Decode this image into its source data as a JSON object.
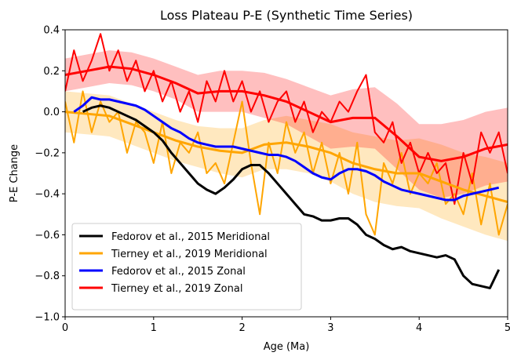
{
  "chart_data": {
    "type": "line",
    "title": "Loss Plateau P-E (Synthetic Time Series)",
    "xlabel": "Age (Ma)",
    "ylabel": "P-E Change",
    "x": [
      0,
      0.1,
      0.2,
      0.3,
      0.4,
      0.5,
      0.6,
      0.7,
      0.8,
      0.9,
      1.0,
      1.1,
      1.2,
      1.3,
      1.4,
      1.5,
      1.6,
      1.7,
      1.8,
      1.9,
      2.0,
      2.1,
      2.2,
      2.3,
      2.4,
      2.5,
      2.6,
      2.7,
      2.8,
      2.9,
      3.0,
      3.1,
      3.2,
      3.3,
      3.4,
      3.5,
      3.6,
      3.7,
      3.8,
      3.9,
      4.0,
      4.1,
      4.2,
      4.3,
      4.4,
      4.5,
      4.6,
      4.7,
      4.8,
      4.9,
      5.0
    ],
    "fit_x": [
      0,
      0.25,
      0.5,
      0.75,
      1,
      1.25,
      1.5,
      1.75,
      2,
      2.25,
      2.5,
      2.75,
      3,
      3.25,
      3.5,
      3.75,
      4,
      4.25,
      4.5,
      4.75,
      5
    ],
    "series": [
      {
        "name": "Fedorov et al., 2015 Meridional",
        "color": "#000000",
        "values": [
          null,
          null,
          0.0,
          0.02,
          0.03,
          0.02,
          0.0,
          -0.02,
          -0.04,
          -0.07,
          -0.1,
          -0.14,
          -0.2,
          -0.25,
          -0.3,
          -0.35,
          -0.38,
          -0.4,
          -0.37,
          -0.33,
          -0.28,
          -0.26,
          -0.26,
          -0.3,
          -0.35,
          -0.4,
          -0.45,
          -0.5,
          -0.51,
          -0.53,
          -0.53,
          -0.52,
          -0.52,
          -0.55,
          -0.6,
          -0.62,
          -0.65,
          -0.67,
          -0.66,
          -0.68,
          -0.69,
          -0.7,
          -0.71,
          -0.7,
          -0.72,
          -0.8,
          -0.84,
          -0.85,
          -0.86,
          -0.77,
          null
        ]
      },
      {
        "name": "Tierney et al., 2019 Meridional",
        "color": "#ffa500",
        "values": [
          0.05,
          -0.15,
          0.1,
          -0.1,
          0.05,
          -0.05,
          0.0,
          -0.2,
          -0.05,
          -0.1,
          -0.25,
          -0.05,
          -0.3,
          -0.15,
          -0.2,
          -0.1,
          -0.3,
          -0.25,
          -0.35,
          -0.15,
          0.05,
          -0.25,
          -0.5,
          -0.15,
          -0.3,
          -0.05,
          -0.2,
          -0.1,
          -0.3,
          -0.15,
          -0.35,
          -0.2,
          -0.4,
          -0.15,
          -0.5,
          -0.6,
          -0.25,
          -0.35,
          -0.2,
          -0.4,
          -0.3,
          -0.35,
          -0.25,
          -0.45,
          -0.4,
          -0.5,
          -0.3,
          -0.55,
          -0.35,
          -0.6,
          -0.45
        ],
        "fit": [
          0,
          -0.01,
          -0.02,
          -0.06,
          -0.1,
          -0.14,
          -0.17,
          -0.19,
          -0.2,
          -0.16,
          -0.15,
          -0.17,
          -0.2,
          -0.25,
          -0.28,
          -0.3,
          -0.3,
          -0.34,
          -0.38,
          -0.41,
          -0.44
        ],
        "lower": [
          -0.1,
          -0.11,
          -0.12,
          -0.16,
          -0.2,
          -0.24,
          -0.27,
          -0.3,
          -0.32,
          -0.28,
          -0.28,
          -0.3,
          -0.34,
          -0.4,
          -0.44,
          -0.46,
          -0.47,
          -0.52,
          -0.56,
          -0.6,
          -0.63
        ],
        "upper": [
          0.1,
          0.09,
          0.08,
          0.04,
          0.0,
          -0.04,
          -0.07,
          -0.08,
          -0.08,
          -0.04,
          -0.02,
          -0.04,
          -0.06,
          -0.1,
          -0.12,
          -0.14,
          -0.13,
          -0.16,
          -0.2,
          -0.22,
          -0.25
        ]
      },
      {
        "name": "Fedorov et al., 2015 Zonal",
        "color": "#0000ff",
        "values": [
          null,
          0.0,
          0.03,
          0.07,
          0.06,
          0.06,
          0.05,
          0.04,
          0.03,
          0.01,
          -0.02,
          -0.05,
          -0.08,
          -0.1,
          -0.13,
          -0.15,
          -0.16,
          -0.17,
          -0.17,
          -0.17,
          -0.18,
          -0.19,
          -0.2,
          -0.21,
          -0.21,
          -0.22,
          -0.24,
          -0.27,
          -0.3,
          -0.32,
          -0.33,
          -0.3,
          -0.28,
          -0.28,
          -0.29,
          -0.31,
          -0.34,
          -0.36,
          -0.38,
          -0.39,
          -0.4,
          -0.41,
          -0.42,
          -0.43,
          -0.43,
          -0.41,
          -0.4,
          -0.39,
          -0.38,
          -0.37,
          null
        ]
      },
      {
        "name": "Tierney et al., 2019 Zonal",
        "color": "#ff0000",
        "values": [
          0.1,
          0.3,
          0.15,
          0.25,
          0.38,
          0.2,
          0.3,
          0.15,
          0.25,
          0.1,
          0.2,
          0.05,
          0.15,
          0.0,
          0.1,
          -0.05,
          0.15,
          0.05,
          0.2,
          0.05,
          0.15,
          0.0,
          0.1,
          -0.05,
          0.05,
          0.1,
          -0.05,
          0.05,
          -0.1,
          0.0,
          -0.05,
          0.05,
          0.0,
          0.1,
          0.18,
          -0.1,
          -0.15,
          -0.05,
          -0.25,
          -0.15,
          -0.3,
          -0.2,
          -0.3,
          -0.25,
          -0.45,
          -0.2,
          -0.35,
          -0.1,
          -0.2,
          -0.1,
          -0.3
        ],
        "fit": [
          0.18,
          0.2,
          0.22,
          0.21,
          0.18,
          0.14,
          0.09,
          0.1,
          0.1,
          0.08,
          0.05,
          0.0,
          -0.05,
          -0.03,
          -0.03,
          -0.12,
          -0.22,
          -0.24,
          -0.22,
          -0.18,
          -0.16
        ],
        "lower": [
          0.1,
          0.12,
          0.14,
          0.13,
          0.1,
          0.06,
          0.0,
          0.0,
          0.0,
          -0.03,
          -0.06,
          -0.12,
          -0.18,
          -0.17,
          -0.18,
          -0.28,
          -0.38,
          -0.42,
          -0.4,
          -0.36,
          -0.34
        ],
        "upper": [
          0.26,
          0.28,
          0.3,
          0.29,
          0.26,
          0.22,
          0.18,
          0.2,
          0.2,
          0.19,
          0.16,
          0.12,
          0.08,
          0.11,
          0.12,
          0.04,
          -0.06,
          -0.06,
          -0.04,
          0.0,
          0.02
        ]
      }
    ],
    "xlim": [
      0,
      5
    ],
    "xticks": [
      0,
      1,
      2,
      3,
      4,
      5
    ],
    "ylim": [
      -1.0,
      0.4
    ],
    "yticks": [
      {
        "value": -1.0,
        "label": "−1.0"
      },
      {
        "value": -0.8,
        "label": "−0.8"
      },
      {
        "value": -0.6,
        "label": "−0.6"
      },
      {
        "value": -0.4,
        "label": "−0.4"
      },
      {
        "value": -0.2,
        "label": "−0.2"
      },
      {
        "value": 0,
        "label": "0.0"
      },
      {
        "value": 0.2,
        "label": "0.2"
      },
      {
        "value": 0.4,
        "label": "0.4"
      }
    ],
    "legend": "lower left",
    "grid": false
  }
}
